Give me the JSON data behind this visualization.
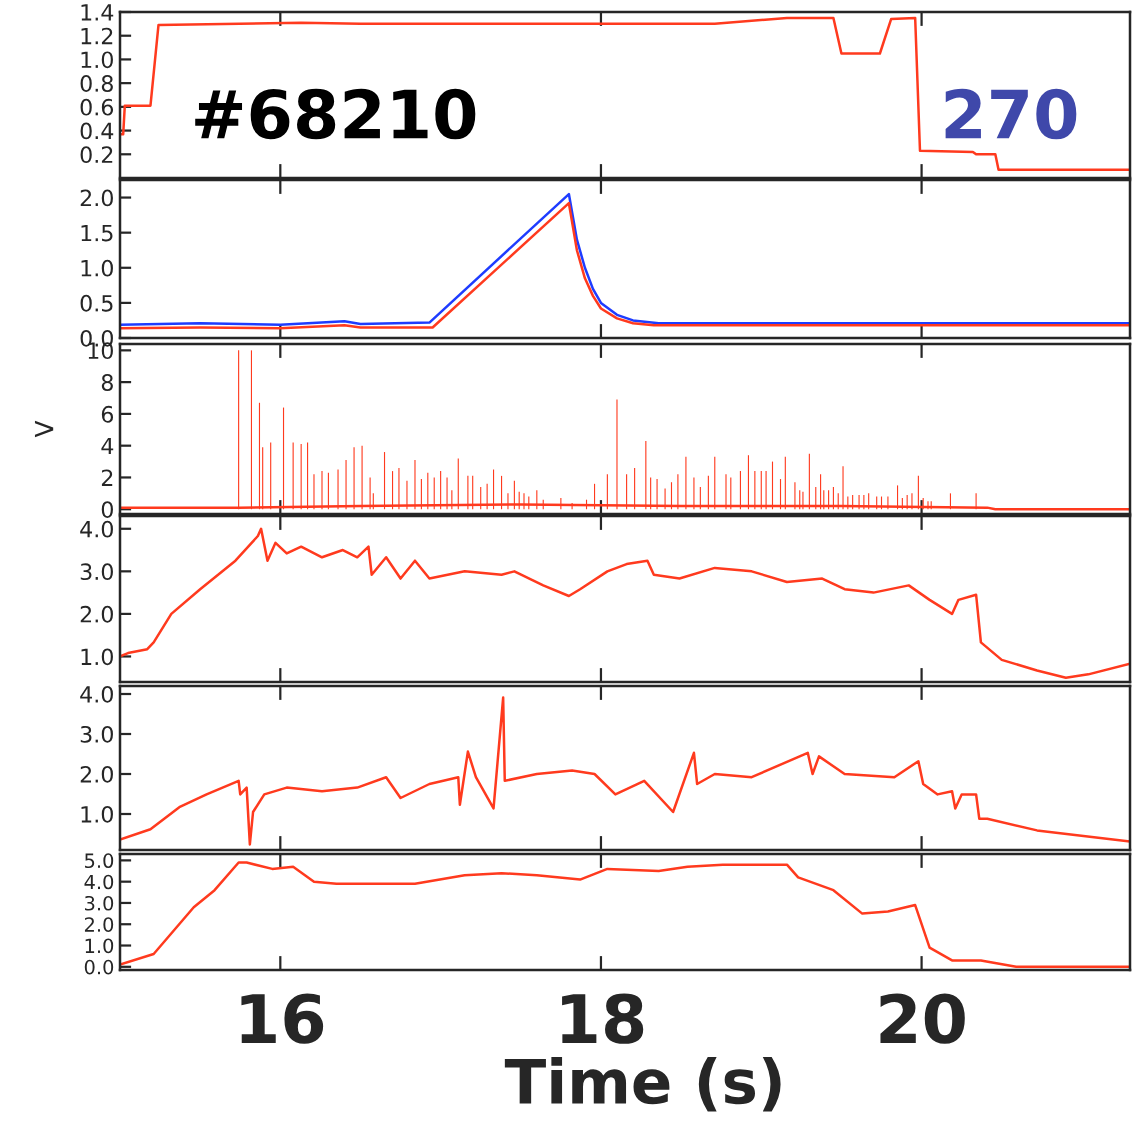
{
  "chart_data": [
    {
      "type": "line",
      "xlim": [
        15.0,
        21.3
      ],
      "xticks": [
        16,
        18,
        20
      ],
      "ylim": [
        0.0,
        1.4
      ],
      "yticks": [
        0.2,
        0.4,
        0.6,
        0.8,
        {
          "value": 1,
          "label": "1.0"
        },
        1.2,
        1.4
      ],
      "tick_labels": "y",
      "grid": false,
      "annotations": [
        "#68210",
        "270"
      ],
      "series": [
        {
          "color": "#ff3a1e",
          "x": [
            15.0,
            15.02,
            15.03,
            15.19,
            15.24,
            16.13,
            16.5,
            18.71,
            19.16,
            19.45,
            19.5,
            19.74,
            19.81,
            19.96,
            19.99,
            20.32,
            20.34,
            20.46,
            20.48,
            21.3
          ],
          "values": [
            0.37,
            0.37,
            0.61,
            0.61,
            1.29,
            1.31,
            1.3,
            1.3,
            1.35,
            1.35,
            1.05,
            1.05,
            1.34,
            1.35,
            0.23,
            0.22,
            0.2,
            0.2,
            0.07,
            0.07
          ]
        }
      ]
    },
    {
      "type": "line",
      "xlim": [
        15.0,
        21.3
      ],
      "xticks": [
        16,
        18,
        20
      ],
      "ylim": [
        0.0,
        2.25
      ],
      "yticks": [
        {
          "value": 0,
          "label": "0.0"
        },
        0.5,
        {
          "value": 1,
          "label": "1.0"
        },
        1.5,
        {
          "value": 2,
          "label": "2.0"
        }
      ],
      "tick_labels": "y",
      "grid": false,
      "series": [
        {
          "color": "#1e3cff",
          "x": [
            15.0,
            15.5,
            16.0,
            16.4,
            16.5,
            16.93,
            17.8,
            17.85,
            17.9,
            17.95,
            18.0,
            18.1,
            18.2,
            18.36,
            21.3
          ],
          "values": [
            0.19,
            0.21,
            0.19,
            0.24,
            0.2,
            0.22,
            2.05,
            1.4,
            1.0,
            0.7,
            0.5,
            0.33,
            0.25,
            0.21,
            0.21
          ]
        },
        {
          "color": "#ff3a1e",
          "x": [
            15.0,
            15.5,
            16.0,
            16.4,
            16.5,
            16.95,
            17.8,
            17.85,
            17.9,
            17.95,
            18.0,
            18.1,
            18.2,
            18.33,
            21.3
          ],
          "values": [
            0.14,
            0.15,
            0.14,
            0.18,
            0.15,
            0.15,
            1.92,
            1.25,
            0.85,
            0.6,
            0.42,
            0.28,
            0.21,
            0.18,
            0.18
          ]
        }
      ]
    },
    {
      "type": "line",
      "xlim": [
        15.0,
        21.3
      ],
      "xticks": [
        16,
        18,
        20
      ],
      "ylim": [
        -0.3,
        10.4
      ],
      "yticks": [
        0,
        2,
        4,
        6,
        8,
        10
      ],
      "ylabel": "V",
      "tick_labels": "y",
      "grid": false,
      "series": [
        {
          "type": "bar",
          "color": "#ff3a1e",
          "x": [
            15.74,
            15.82,
            15.87,
            15.89,
            15.94,
            16.02,
            16.08,
            16.13,
            16.17,
            16.21,
            16.26,
            16.3,
            16.36,
            16.41,
            16.46,
            16.51,
            16.56,
            16.58,
            16.65,
            16.7,
            16.74,
            16.79,
            16.84,
            16.88,
            16.92,
            16.96,
            17.0,
            17.04,
            17.07,
            17.11,
            17.17,
            17.2,
            17.25,
            17.29,
            17.33,
            17.38,
            17.42,
            17.46,
            17.49,
            17.52,
            17.55,
            17.6,
            17.64,
            17.75,
            17.82,
            17.91,
            17.96,
            18.04,
            18.1,
            18.16,
            18.21,
            18.28,
            18.31,
            18.35,
            18.4,
            18.44,
            18.48,
            18.53,
            18.58,
            18.62,
            18.67,
            18.71,
            18.78,
            18.81,
            18.87,
            18.92,
            18.96,
            19.0,
            19.03,
            19.07,
            19.12,
            19.15,
            19.21,
            19.24,
            19.26,
            19.3,
            19.34,
            19.37,
            19.39,
            19.42,
            19.45,
            19.48,
            19.51,
            19.54,
            19.57,
            19.61,
            19.64,
            19.67,
            19.72,
            19.75,
            19.79,
            19.85,
            19.88,
            19.91,
            19.94,
            19.98,
            20.01,
            20.04,
            20.06,
            20.18,
            20.34
          ],
          "values": [
            10,
            10,
            6.7,
            3.9,
            4.2,
            6.4,
            4.2,
            4.1,
            4.2,
            2.2,
            2.4,
            2.3,
            2.5,
            3.1,
            3.9,
            4.0,
            2.0,
            1.0,
            3.6,
            2.4,
            2.6,
            1.8,
            3.1,
            1.9,
            2.3,
            2.0,
            2.4,
            2.0,
            1.2,
            3.2,
            2.1,
            2.1,
            1.4,
            1.6,
            2.5,
            2.1,
            1.0,
            1.8,
            1.1,
            1.0,
            0.8,
            1.2,
            0.6,
            0.7,
            0.4,
            0.6,
            1.6,
            2.2,
            6.9,
            2.2,
            2.6,
            4.3,
            2.0,
            1.9,
            1.3,
            1.7,
            2.2,
            3.3,
            2.0,
            1.4,
            2.1,
            3.3,
            2.2,
            2.0,
            2.4,
            3.4,
            2.4,
            2.4,
            2.4,
            3.0,
            1.9,
            3.3,
            1.7,
            1.2,
            1.1,
            3.5,
            1.4,
            2.2,
            1.2,
            1.2,
            1.4,
            1.0,
            2.7,
            0.8,
            0.9,
            0.9,
            0.9,
            1.0,
            0.8,
            0.8,
            0.8,
            1.5,
            0.7,
            0.9,
            1.0,
            2.1,
            0.7,
            0.5,
            0.5,
            1.0,
            1.0
          ]
        },
        {
          "color": "#ff3a1e",
          "x": [
            15.0,
            15.74,
            16.5,
            17.5,
            18.5,
            19.5,
            20.41,
            20.46,
            21.3
          ],
          "values": [
            0.1,
            0.1,
            0.2,
            0.3,
            0.2,
            0.2,
            0.1,
            0.0,
            0.0
          ]
        }
      ]
    },
    {
      "type": "line",
      "xlim": [
        15.0,
        21.3
      ],
      "xticks": [
        16,
        18,
        20
      ],
      "ylim": [
        0.4,
        4.3
      ],
      "yticks": [
        {
          "value": 1,
          "label": "1.0"
        },
        {
          "value": 2,
          "label": "2.0"
        },
        {
          "value": 3,
          "label": "3.0"
        },
        {
          "value": 4,
          "label": "4.0"
        }
      ],
      "tick_labels": "y",
      "grid": false,
      "series": [
        {
          "color": "#ff3a1e",
          "x": [
            15.0,
            15.05,
            15.17,
            15.21,
            15.32,
            15.5,
            15.72,
            15.86,
            15.88,
            15.92,
            15.97,
            16.04,
            16.13,
            16.26,
            16.39,
            16.48,
            16.55,
            16.57,
            16.66,
            16.75,
            16.84,
            16.93,
            17.15,
            17.38,
            17.46,
            17.64,
            17.8,
            17.87,
            18.04,
            18.16,
            18.29,
            18.33,
            18.49,
            18.71,
            18.94,
            19.16,
            19.38,
            19.52,
            19.7,
            19.92,
            20.05,
            20.19,
            20.23,
            20.34,
            20.37,
            20.5,
            20.72,
            20.9,
            21.04,
            21.3
          ],
          "values": [
            1.0,
            1.08,
            1.17,
            1.33,
            2.0,
            2.58,
            3.25,
            3.83,
            4.0,
            3.25,
            3.67,
            3.42,
            3.58,
            3.33,
            3.5,
            3.33,
            3.58,
            2.92,
            3.33,
            2.83,
            3.25,
            2.83,
            3.0,
            2.92,
            3.0,
            2.67,
            2.42,
            2.58,
            3.0,
            3.17,
            3.25,
            2.92,
            2.83,
            3.08,
            3.0,
            2.75,
            2.83,
            2.58,
            2.5,
            2.67,
            2.33,
            2.0,
            2.33,
            2.45,
            1.33,
            0.92,
            0.67,
            0.5,
            0.58,
            0.83
          ]
        }
      ]
    },
    {
      "type": "line",
      "xlim": [
        15.0,
        21.3
      ],
      "xticks": [
        16,
        18,
        20
      ],
      "ylim": [
        0.1,
        4.2
      ],
      "yticks": [
        {
          "value": 1,
          "label": "1.0"
        },
        {
          "value": 2,
          "label": "2.0"
        },
        {
          "value": 3,
          "label": "3.0"
        },
        {
          "value": 4,
          "label": "4.0"
        }
      ],
      "tick_labels": "y",
      "grid": false,
      "series": [
        {
          "color": "#ff3a1e",
          "x": [
            15.0,
            15.19,
            15.37,
            15.54,
            15.74,
            15.75,
            15.79,
            15.81,
            15.83,
            15.9,
            16.04,
            16.26,
            16.48,
            16.66,
            16.75,
            16.93,
            17.11,
            17.12,
            17.17,
            17.22,
            17.33,
            17.39,
            17.4,
            17.6,
            17.82,
            17.96,
            18.09,
            18.27,
            18.45,
            18.58,
            18.6,
            18.71,
            18.94,
            19.29,
            19.32,
            19.36,
            19.52,
            19.83,
            19.98,
            20.01,
            20.1,
            20.19,
            20.21,
            20.25,
            20.34,
            20.36,
            20.41,
            20.72,
            21.3
          ],
          "values": [
            0.36,
            0.62,
            1.17,
            1.49,
            1.83,
            1.49,
            1.66,
            0.24,
            1.05,
            1.49,
            1.66,
            1.57,
            1.66,
            1.92,
            1.4,
            1.75,
            1.92,
            1.23,
            2.56,
            1.92,
            1.14,
            3.91,
            1.83,
            2.0,
            2.09,
            2.0,
            1.49,
            1.83,
            1.05,
            2.53,
            1.75,
            2.0,
            1.92,
            2.53,
            2.0,
            2.44,
            2.0,
            1.92,
            2.32,
            1.75,
            1.49,
            1.57,
            1.14,
            1.49,
            1.49,
            0.88,
            0.88,
            0.59,
            0.31
          ]
        }
      ]
    },
    {
      "type": "line",
      "xlim": [
        15.0,
        21.3
      ],
      "xticks": [
        16,
        18,
        20
      ],
      "ylim": [
        -0.15,
        5.3
      ],
      "yticks": [
        {
          "value": 0,
          "label": "0.0"
        },
        {
          "value": 1,
          "label": "1.0"
        },
        {
          "value": 2,
          "label": "2.0"
        },
        {
          "value": 3,
          "label": "3.0"
        },
        {
          "value": 4,
          "label": "4.0"
        },
        {
          "value": 5,
          "label": "5.0"
        }
      ],
      "xlabel": "Time (s)",
      "grid": false,
      "series": [
        {
          "color": "#ff3a1e",
          "x": [
            15.0,
            15.21,
            15.46,
            15.59,
            15.74,
            15.79,
            15.95,
            16.08,
            16.21,
            16.35,
            16.62,
            16.84,
            17.15,
            17.38,
            17.6,
            17.87,
            18.04,
            18.36,
            18.54,
            18.76,
            19.16,
            19.23,
            19.45,
            19.63,
            19.79,
            19.96,
            20.05,
            20.19,
            20.37,
            20.59,
            21.3
          ],
          "values": [
            0.1,
            0.6,
            2.8,
            3.6,
            4.9,
            4.9,
            4.6,
            4.7,
            4.0,
            3.9,
            3.9,
            3.9,
            4.3,
            4.4,
            4.3,
            4.1,
            4.6,
            4.5,
            4.7,
            4.8,
            4.8,
            4.2,
            3.6,
            2.5,
            2.6,
            2.9,
            0.9,
            0.3,
            0.3,
            0.0,
            0.0
          ]
        }
      ]
    }
  ]
}
